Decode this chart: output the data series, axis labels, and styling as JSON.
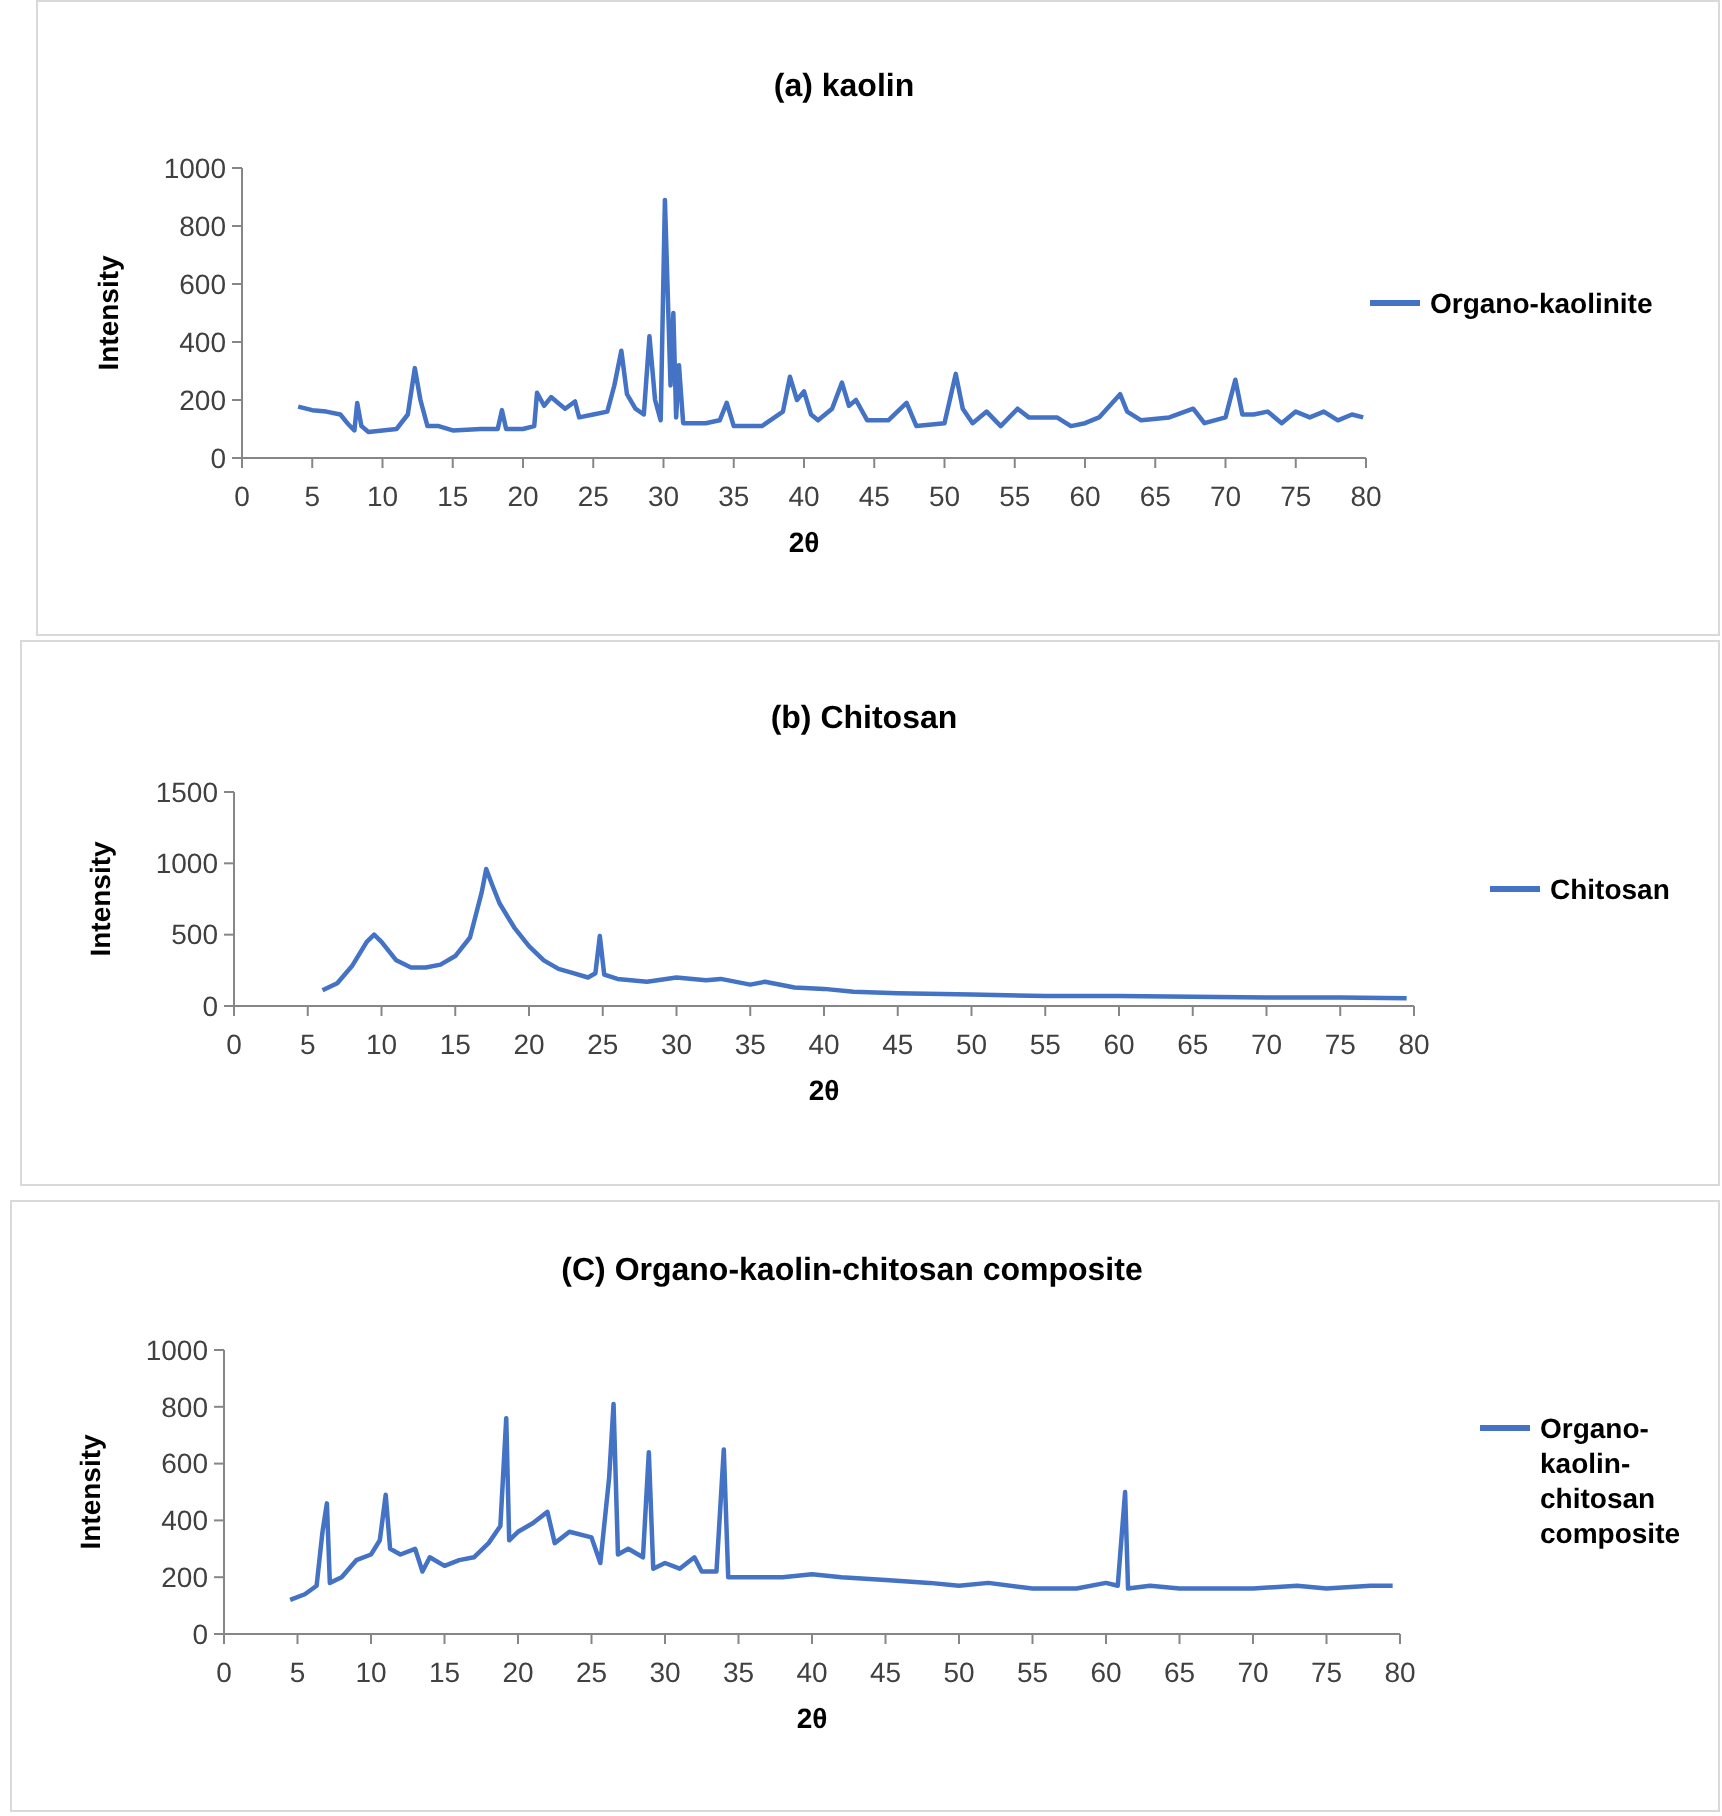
{
  "chart_data": [
    {
      "type": "line",
      "title": "(a) kaolin",
      "xlabel": "2θ",
      "ylabel": "Intensity",
      "xlim": [
        0,
        80
      ],
      "xticks": [
        0,
        5,
        10,
        15,
        20,
        25,
        30,
        35,
        40,
        45,
        50,
        55,
        60,
        65,
        70,
        75,
        80
      ],
      "ylim": [
        0,
        1000
      ],
      "yticks": [
        0,
        200,
        400,
        600,
        800,
        1000
      ],
      "legend": "right",
      "grid": false,
      "series": [
        {
          "name": "Organo-kaolinite",
          "color": "#4472c4",
          "x": [
            4,
            5,
            6,
            7,
            7.5,
            8,
            8.2,
            8.5,
            9,
            10,
            11,
            11.8,
            12.3,
            12.7,
            13.2,
            14,
            15,
            17,
            18.2,
            18.5,
            18.8,
            20,
            20.8,
            21,
            21.5,
            22,
            22.5,
            23,
            23.7,
            24,
            25,
            26,
            26.5,
            27,
            27.4,
            28,
            28.6,
            29,
            29.4,
            29.8,
            30.1,
            30.3,
            30.5,
            30.7,
            30.9,
            31.1,
            31.4,
            33,
            34,
            34.5,
            35,
            37,
            38.5,
            39,
            39.5,
            40,
            40.5,
            41,
            42,
            42.7,
            43.2,
            43.7,
            44.5,
            46,
            47.3,
            48,
            50,
            50.8,
            51.3,
            52,
            53,
            54,
            55.2,
            56,
            58,
            59,
            60,
            61,
            62.5,
            63,
            64,
            66,
            67.7,
            68.5,
            70,
            70.7,
            71.2,
            72,
            73,
            74,
            75,
            76,
            77,
            78,
            79,
            79.8
          ],
          "values": [
            177,
            165,
            160,
            150,
            120,
            95,
            190,
            110,
            90,
            95,
            100,
            150,
            310,
            200,
            110,
            110,
            95,
            100,
            100,
            165,
            100,
            100,
            110,
            225,
            180,
            210,
            190,
            170,
            195,
            140,
            150,
            160,
            250,
            370,
            220,
            170,
            150,
            420,
            200,
            130,
            890,
            570,
            250,
            500,
            140,
            320,
            120,
            120,
            130,
            190,
            110,
            110,
            160,
            280,
            200,
            230,
            150,
            130,
            170,
            260,
            180,
            200,
            130,
            130,
            190,
            110,
            120,
            290,
            170,
            120,
            160,
            110,
            170,
            140,
            140,
            110,
            120,
            140,
            220,
            160,
            130,
            140,
            170,
            120,
            140,
            270,
            150,
            150,
            160,
            120,
            160,
            140,
            160,
            130,
            150,
            140
          ]
        }
      ]
    },
    {
      "type": "line",
      "title": "(b) Chitosan",
      "xlabel": "2θ",
      "ylabel": "Intensity",
      "xlim": [
        0,
        80
      ],
      "xticks": [
        0,
        5,
        10,
        15,
        20,
        25,
        30,
        35,
        40,
        45,
        50,
        55,
        60,
        65,
        70,
        75,
        80
      ],
      "ylim": [
        0,
        1500
      ],
      "yticks": [
        0,
        500,
        1000,
        1500
      ],
      "legend": "right",
      "grid": false,
      "series": [
        {
          "name": "Chitosan",
          "color": "#4472c4",
          "x": [
            6,
            7,
            8,
            9,
            9.5,
            10,
            11,
            12,
            13,
            14,
            15,
            16,
            16.8,
            17.1,
            17.5,
            18,
            19,
            20,
            21,
            22,
            23,
            24,
            24.5,
            24.8,
            25.1,
            26,
            28,
            30,
            32,
            33,
            35,
            36,
            38,
            40,
            42,
            45,
            50,
            55,
            60,
            65,
            70,
            75,
            79.5
          ],
          "values": [
            110,
            160,
            280,
            450,
            500,
            450,
            320,
            270,
            270,
            290,
            350,
            480,
            800,
            960,
            850,
            720,
            550,
            420,
            320,
            260,
            230,
            200,
            230,
            490,
            220,
            190,
            170,
            200,
            180,
            190,
            150,
            170,
            130,
            120,
            100,
            90,
            80,
            70,
            70,
            65,
            60,
            60,
            55
          ]
        }
      ]
    },
    {
      "type": "line",
      "title": "(C) Organo-kaolin-chitosan composite",
      "xlabel": "2θ",
      "ylabel": "Intensity",
      "xlim": [
        0,
        80
      ],
      "xticks": [
        0,
        5,
        10,
        15,
        20,
        25,
        30,
        35,
        40,
        45,
        50,
        55,
        60,
        65,
        70,
        75,
        80
      ],
      "ylim": [
        0,
        1000
      ],
      "yticks": [
        0,
        200,
        400,
        600,
        800,
        1000
      ],
      "legend": "right",
      "grid": false,
      "series": [
        {
          "name": "Organo-kaolin-chitosan composite",
          "color": "#4472c4",
          "x": [
            4.5,
            5.5,
            6.3,
            6.7,
            7,
            7.2,
            8,
            9,
            10,
            10.6,
            11,
            11.3,
            12,
            13,
            13.5,
            14,
            15,
            16,
            17,
            18,
            18.8,
            19.2,
            19.4,
            20,
            21,
            22,
            22.5,
            23.5,
            25,
            25.6,
            26.2,
            26.5,
            26.8,
            27.5,
            28.5,
            28.9,
            29.2,
            30,
            31,
            32,
            32.5,
            33.5,
            34,
            34.3,
            36,
            38,
            40,
            42,
            45,
            48,
            50,
            52,
            55,
            58,
            60,
            60.8,
            61.3,
            61.5,
            63,
            65,
            68,
            70,
            73,
            75,
            78,
            79.5
          ],
          "values": [
            120,
            140,
            170,
            360,
            460,
            180,
            200,
            260,
            280,
            330,
            490,
            300,
            280,
            300,
            220,
            270,
            240,
            260,
            270,
            320,
            380,
            760,
            330,
            360,
            390,
            430,
            320,
            360,
            340,
            250,
            550,
            810,
            280,
            300,
            270,
            640,
            230,
            250,
            230,
            270,
            220,
            220,
            650,
            200,
            200,
            200,
            210,
            200,
            190,
            180,
            170,
            180,
            160,
            160,
            180,
            170,
            500,
            160,
            170,
            160,
            160,
            160,
            170,
            160,
            170,
            170
          ]
        }
      ]
    }
  ]
}
